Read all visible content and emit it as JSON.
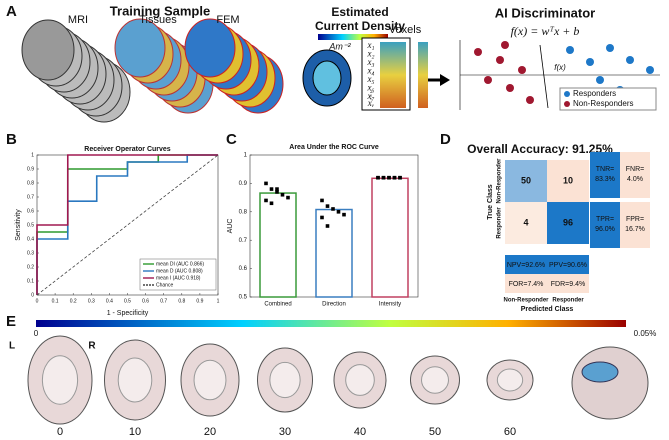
{
  "panel_a": {
    "label": "A",
    "title": "Training Sample",
    "stack_labels": [
      "MRI",
      "Tissues",
      "FEM"
    ],
    "density_title": [
      "Estimated",
      "Current Density"
    ],
    "unit": "Am⁻²",
    "voxels": "Voxels",
    "features": [
      "x₁",
      "x₂",
      "x₃",
      "x₄",
      "x₅",
      "x₆",
      "x₇",
      "xᵥ"
    ],
    "disc_title": "AI Discriminator",
    "formula": "f(x) = wᵀx + b",
    "fx": "f(x)",
    "legend": [
      "Responders",
      "Non-Responders"
    ]
  },
  "chart_data": [
    {
      "type": "line",
      "label": "B",
      "title": "Receiver Operator Curves",
      "xlabel": "1 - Specificity",
      "ylabel": "Sensitivity",
      "xlim": [
        0,
        1
      ],
      "ylim": [
        0,
        1
      ],
      "xticks": [
        0,
        0.1,
        0.2,
        0.3,
        0.4,
        0.5,
        0.6,
        0.7,
        0.8,
        0.9,
        1
      ],
      "yticks": [
        0,
        0.1,
        0.2,
        0.3,
        0.4,
        0.5,
        0.6,
        0.7,
        0.8,
        0.9,
        1
      ],
      "legend": "lower right",
      "series": [
        {
          "name": "mean DI (AUC 0.866)",
          "color": "#2e9a2e",
          "x": [
            0,
            0,
            0.17,
            0.17,
            0.5,
            0.5,
            0.67,
            0.67,
            1
          ],
          "values": [
            0,
            0.45,
            0.45,
            0.9,
            0.9,
            0.95,
            0.95,
            1,
            1
          ]
        },
        {
          "name": "mean D (AUC 0.808)",
          "color": "#2a78c0",
          "x": [
            0,
            0,
            0.17,
            0.17,
            0.33,
            0.33,
            0.5,
            0.5,
            0.83,
            0.83,
            1
          ],
          "values": [
            0,
            0.4,
            0.4,
            0.67,
            0.67,
            0.85,
            0.85,
            0.95,
            0.95,
            1,
            1
          ]
        },
        {
          "name": "mean I (AUC 0.918)",
          "color": "#a01850",
          "x": [
            0,
            0,
            0.17,
            0.17,
            1
          ],
          "values": [
            0,
            0.5,
            0.5,
            1,
            1
          ]
        },
        {
          "name": "Chance",
          "color": "#444444",
          "dashed": true,
          "x": [
            0,
            1
          ],
          "values": [
            0,
            1
          ]
        }
      ]
    },
    {
      "type": "bar",
      "label": "C",
      "title": "Area Under the ROC Curve",
      "ylabel": "AUC",
      "categories": [
        "Combined",
        "Direction",
        "Intensity"
      ],
      "values": [
        0.866,
        0.808,
        0.918
      ],
      "colors": [
        "#3a9a3a",
        "#3a7ec0",
        "#c04060"
      ],
      "ylim": [
        0.5,
        1
      ],
      "yticks": [
        0.5,
        0.6,
        0.7,
        0.8,
        0.9,
        1
      ],
      "points": [
        [
          0.9,
          0.88,
          0.87,
          0.86,
          0.85,
          0.84,
          0.83,
          0.88
        ],
        [
          0.84,
          0.82,
          0.81,
          0.8,
          0.79,
          0.78,
          0.75
        ],
        [
          0.92,
          0.92,
          0.92,
          0.92,
          0.92,
          0.92,
          0.92,
          0.92,
          0.92,
          0.92
        ]
      ]
    }
  ],
  "panel_d": {
    "label": "D",
    "title": "Overall Accuracy: 91.25%",
    "matrix": [
      [
        50,
        10
      ],
      [
        4,
        96
      ]
    ],
    "row_labels": [
      "Non-Responder",
      "Responder"
    ],
    "col_labels": [
      "Non-Responder",
      "Responder"
    ],
    "ylabel": "True Class",
    "xlabel": "Predicted Class",
    "side": [
      [
        [
          "TNR=",
          "83.3%"
        ],
        [
          "FNR=",
          "4.0%"
        ]
      ],
      [
        [
          "TPR=",
          "96.0%"
        ],
        [
          "FPR=",
          "16.7%"
        ]
      ]
    ],
    "bottom": [
      [
        "NPV=92.6%",
        "PPV=90.6%"
      ],
      [
        "FOR=7.4%",
        "FDR=9.4%"
      ]
    ]
  },
  "panel_e": {
    "label": "E",
    "colorbar": [
      "0",
      "0.05%"
    ],
    "hemispheres": [
      "L",
      "R"
    ],
    "slices": [
      "0",
      "10",
      "20",
      "30",
      "40",
      "50",
      "60"
    ]
  }
}
